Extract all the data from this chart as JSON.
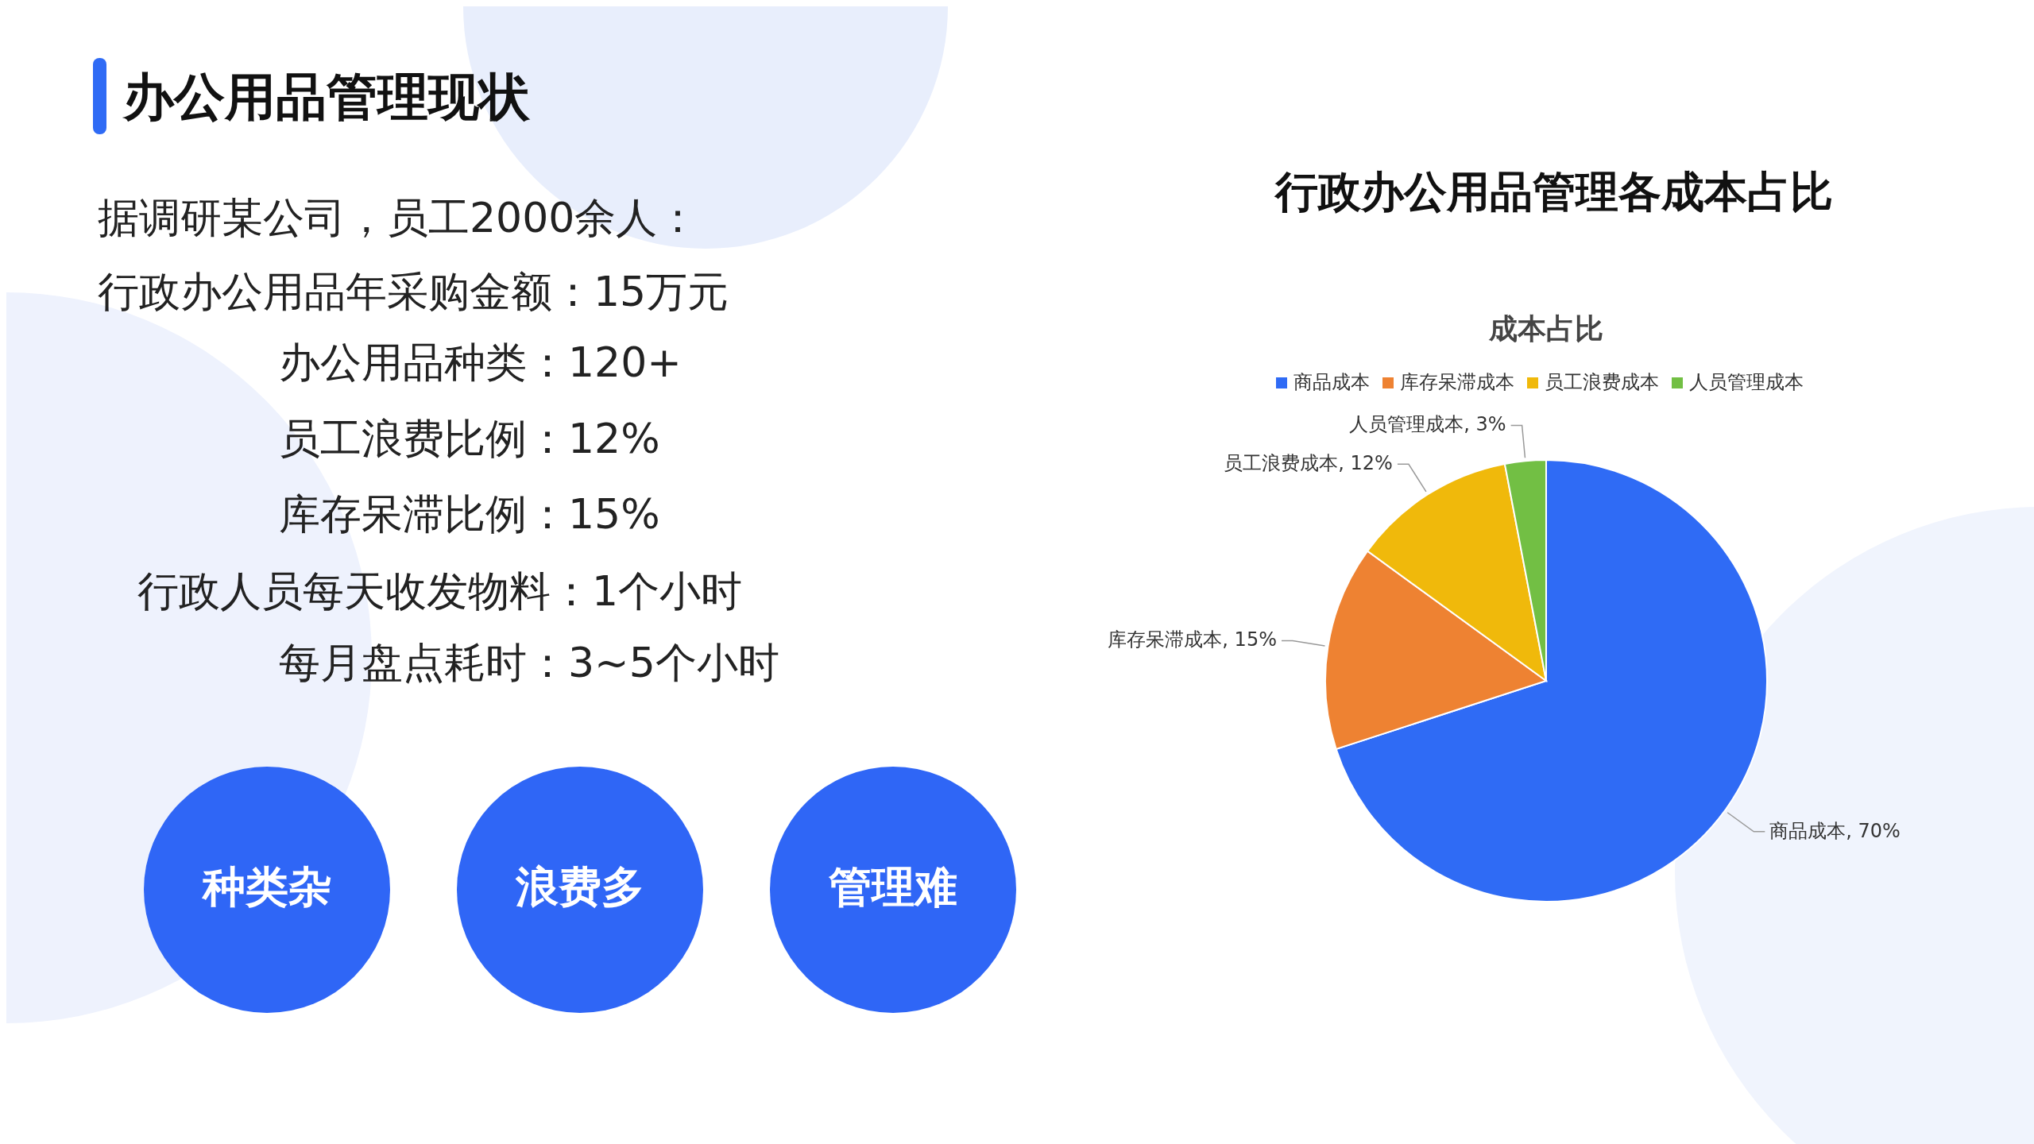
{
  "chart_data": [
    {
      "type": "other",
      "title": "办公用品管理现状",
      "annotations": [
        "据调研某公司，员工2000余人：",
        "行政办公用品年采购金额：15万元",
        "办公用品种类：120+",
        "员工浪费比例：12%",
        "库存呆滞比例：15%",
        "行政人员每天收发物料：1个小时",
        "每月盘点耗时：3~5个小时",
        "种类杂",
        "浪费多",
        "管理难"
      ]
    },
    {
      "type": "pie",
      "title": "行政办公用品管理各成本占比",
      "subtitle": "成本占比",
      "categories": [
        "商品成本",
        "库存呆滞成本",
        "员工浪费成本",
        "人员管理成本"
      ],
      "values": [
        70,
        15,
        12,
        3
      ],
      "value_labels": [
        "商品成本, 70%",
        "库存呆滞成本, 15%",
        "员工浪费成本, 12%",
        "人员管理成本, 3%"
      ],
      "colors": [
        "#2f6bf5",
        "#ee8232",
        "#f0b90b",
        "#72bf44"
      ],
      "legend": "top"
    }
  ]
}
